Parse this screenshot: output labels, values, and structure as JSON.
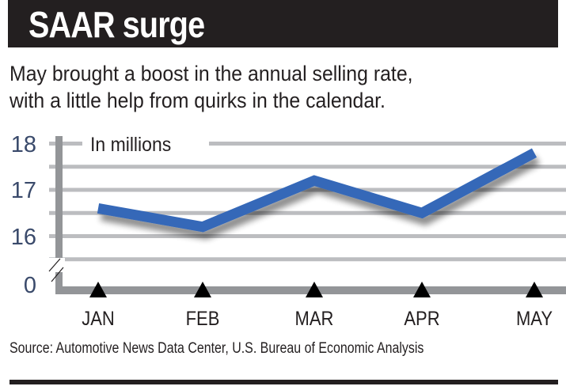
{
  "header": {
    "title": "SAAR surge",
    "subtitle_lines": [
      "May brought a boost in the annual selling rate,",
      "with a little help from quirks in the calendar."
    ]
  },
  "chart_data": {
    "type": "line",
    "title": "SAAR surge",
    "ylabel": "In millions",
    "categories": [
      "JAN",
      "FEB",
      "MAR",
      "APR",
      "MAY"
    ],
    "values": [
      16.6,
      16.2,
      17.2,
      16.5,
      17.8
    ],
    "y_ticks": [
      "18",
      "17",
      "16",
      "0"
    ],
    "ylim": [
      15.5,
      18
    ],
    "axis_break": true,
    "grid": true,
    "line_color": "#3468b8",
    "grid_color": "#bcbdc0",
    "axis_color": "#939598"
  },
  "footer": {
    "source": "Source: Automotive News Data Center, U.S. Bureau of Economic Analysis"
  }
}
